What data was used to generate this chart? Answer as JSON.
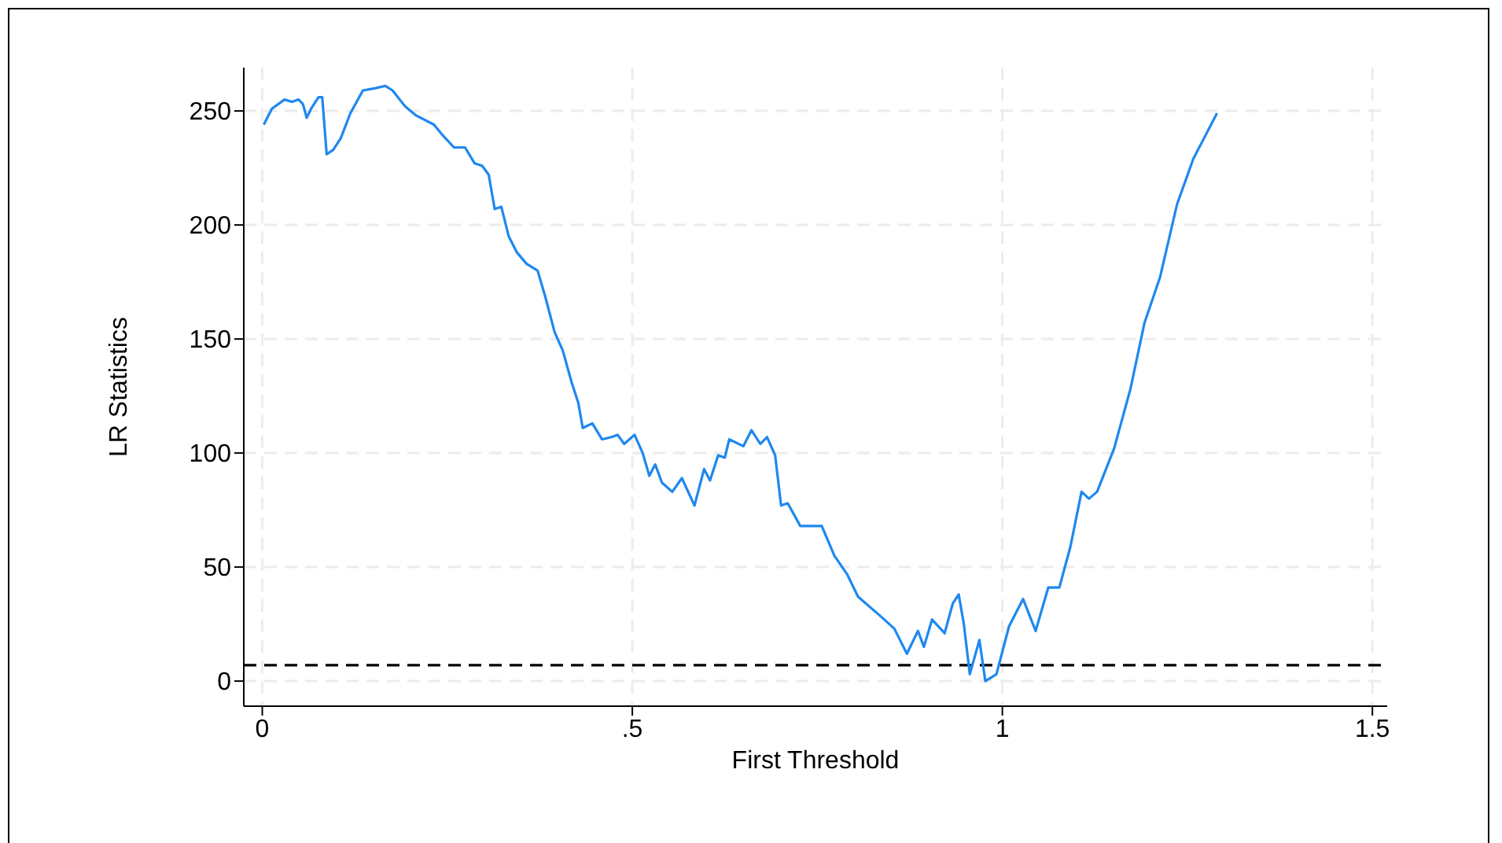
{
  "chart_data": {
    "type": "line",
    "xlabel": "First Threshold",
    "ylabel": "LR Statistics",
    "xlim": [
      -0.025,
      1.52
    ],
    "xticks": [
      0,
      {
        "value": 0.5,
        "label": ".5"
      },
      1,
      1.5
    ],
    "ylim": [
      -11,
      269
    ],
    "yticks": [
      0,
      50,
      100,
      150,
      200,
      250
    ],
    "grid": true,
    "line_style": "solid",
    "marker": "none",
    "ref_lines": [
      {
        "axis": "y",
        "value": 7,
        "label": null,
        "color": "#000000",
        "line_style": "dashed"
      }
    ],
    "series": [
      {
        "color": "#1e88f0",
        "x": [
          0.002,
          0.013,
          0.03,
          0.04,
          0.049,
          0.055,
          0.06,
          0.066,
          0.076,
          0.081,
          0.087,
          0.096,
          0.106,
          0.119,
          0.136,
          0.153,
          0.166,
          0.176,
          0.193,
          0.208,
          0.232,
          0.242,
          0.259,
          0.274,
          0.287,
          0.297,
          0.306,
          0.314,
          0.323,
          0.333,
          0.344,
          0.357,
          0.372,
          0.382,
          0.395,
          0.406,
          0.418,
          0.427,
          0.433,
          0.446,
          0.459,
          0.472,
          0.48,
          0.489,
          0.503,
          0.514,
          0.523,
          0.531,
          0.54,
          0.554,
          0.567,
          0.584,
          0.597,
          0.605,
          0.616,
          0.625,
          0.631,
          0.65,
          0.661,
          0.673,
          0.682,
          0.693,
          0.701,
          0.71,
          0.727,
          0.756,
          0.773,
          0.79,
          0.805,
          0.837,
          0.854,
          0.871,
          0.886,
          0.894,
          0.905,
          0.922,
          0.933,
          0.941,
          0.948,
          0.956,
          0.969,
          0.977,
          0.992,
          1.009,
          1.028,
          1.045,
          1.062,
          1.077,
          1.092,
          1.107,
          1.117,
          1.128,
          1.151,
          1.173,
          1.192,
          1.213,
          1.236,
          1.258,
          1.29
        ],
        "values": [
          244,
          251,
          255,
          254,
          255,
          253,
          247,
          251,
          256,
          256,
          231,
          233,
          238,
          249,
          259,
          260,
          261,
          259,
          252,
          248,
          244,
          240,
          234,
          234,
          227,
          226,
          222,
          207,
          208,
          195,
          188,
          183,
          180,
          169,
          153,
          145,
          131,
          122,
          111,
          113,
          106,
          107,
          108,
          104,
          108,
          100,
          90,
          95,
          87,
          83,
          89,
          77,
          93,
          88,
          99,
          98,
          106,
          103,
          110,
          104,
          107,
          99,
          77,
          78,
          68,
          68,
          55,
          47,
          37,
          28,
          23,
          12,
          22,
          15,
          27,
          21,
          34,
          38,
          25,
          3,
          18,
          0,
          3,
          24,
          36,
          22,
          41,
          41,
          59,
          83,
          80,
          83,
          102,
          128,
          157,
          177,
          209,
          229,
          249
        ]
      }
    ]
  }
}
